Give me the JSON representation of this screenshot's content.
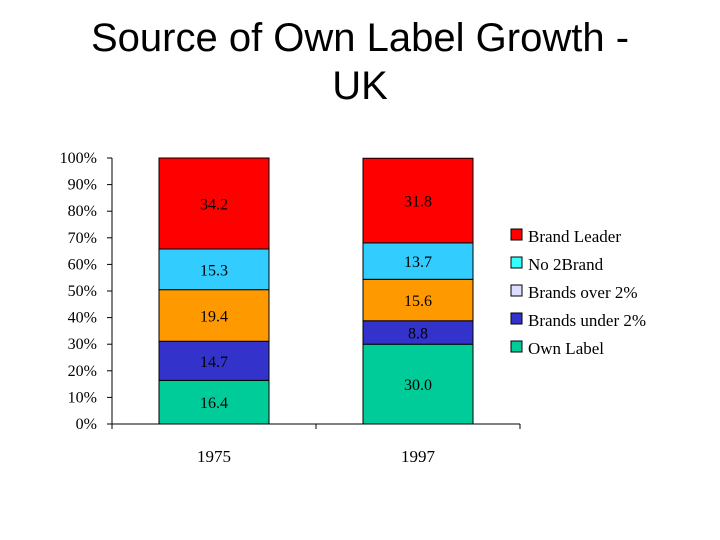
{
  "title_line1": "Source of Own Label Growth -",
  "title_line2": "UK",
  "chart_data": {
    "type": "bar",
    "stacked": true,
    "categories": [
      "1975",
      "1997"
    ],
    "series": [
      {
        "name": "Own Label",
        "color": "#00cc99",
        "values": [
          16.4,
          30.0
        ],
        "labels": [
          "16.4",
          "30.0"
        ]
      },
      {
        "name": "Brands under 2%",
        "color": "#3333cc",
        "values": [
          14.7,
          8.8
        ],
        "labels": [
          "14.7",
          "8.8"
        ]
      },
      {
        "name": "Brands over 2%",
        "color": "#ff9900",
        "values": [
          19.4,
          15.6
        ],
        "labels": [
          "19.4",
          "15.6"
        ]
      },
      {
        "name": "No 2Brand",
        "color": "#33ccff",
        "values": [
          15.3,
          13.7
        ],
        "labels": [
          "15.3",
          "13.7"
        ]
      },
      {
        "name": "Brand Leader",
        "color": "#ff0000",
        "values": [
          34.2,
          31.8
        ],
        "labels": [
          "34.2",
          "31.8"
        ]
      }
    ],
    "legend": [
      {
        "name": "Brand Leader",
        "color": "#ff0000"
      },
      {
        "name": "No 2Brand",
        "color": "#33ffff"
      },
      {
        "name": "Brands over 2%",
        "color": "#ddddff"
      },
      {
        "name": "Brands under 2%",
        "color": "#3333cc"
      },
      {
        "name": "Own Label",
        "color": "#00cc99"
      }
    ],
    "yticks": [
      "0%",
      "10%",
      "20%",
      "30%",
      "40%",
      "50%",
      "60%",
      "70%",
      "80%",
      "90%",
      "100%"
    ],
    "ylim": [
      0,
      100
    ],
    "legend_position": "right"
  }
}
